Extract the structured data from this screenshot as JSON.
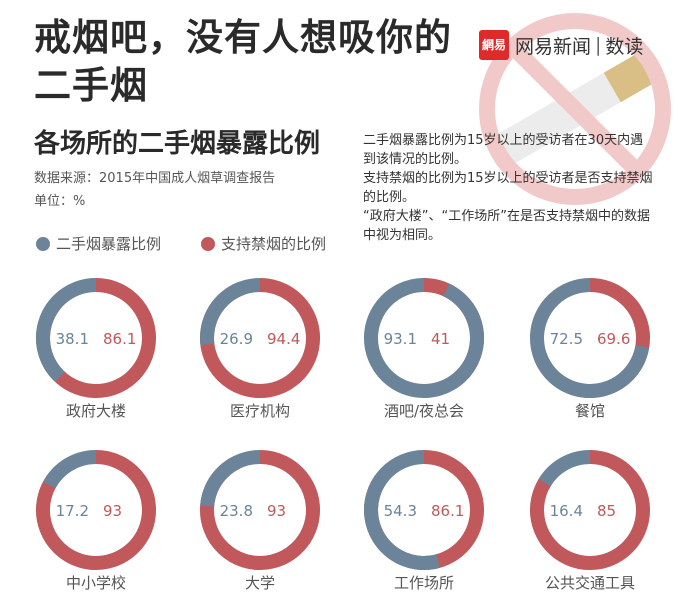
{
  "header": {
    "title": "戒烟吧，没有人想吸你的二手烟",
    "brand_logo": "網易",
    "brand_name": "网易新闻",
    "brand_sep": "|",
    "brand_section": "数读"
  },
  "subtitle": "各场所的二手烟暴露比例",
  "source": "数据来源：2015年中国成人烟草调查报告",
  "unit": "单位：%",
  "notes": [
    "二手烟暴露比例为15岁以上的受访者在30天内遇到该情况的比例。",
    "支持禁烟的比例为15岁以上的受访者是否支持禁烟的比例。",
    "“政府大楼”、“工作场所”在是否支持禁烟中的数据中视为相同。"
  ],
  "colors": {
    "exposure": "#6b8499",
    "support": "#c0585c",
    "track": "#d9d9d9",
    "exposure_text": "#6b8499",
    "support_text": "#c0585c",
    "mark_red": "#f2c9c9",
    "mark_tan": "#d9bf86"
  },
  "chart_data": {
    "type": "donut",
    "series": [
      {
        "name": "二手烟暴露比例",
        "color": "#6b8499"
      },
      {
        "name": "支持禁烟的比例",
        "color": "#c0585c"
      }
    ],
    "max": 100,
    "items": [
      {
        "place": "政府大楼",
        "exposure": 38.1,
        "support": 86.1
      },
      {
        "place": "医疗机构",
        "exposure": 26.9,
        "support": 94.4
      },
      {
        "place": "酒吧/夜总会",
        "exposure": 93.1,
        "support": 41
      },
      {
        "place": "餐馆",
        "exposure": 72.5,
        "support": 69.6
      },
      {
        "place": "中小学校",
        "exposure": 17.2,
        "support": 93
      },
      {
        "place": "大学",
        "exposure": 23.8,
        "support": 93
      },
      {
        "place": "工作场所",
        "exposure": 54.3,
        "support": 86.1
      },
      {
        "place": "公共交通工具",
        "exposure": 16.4,
        "support": 85
      }
    ]
  }
}
